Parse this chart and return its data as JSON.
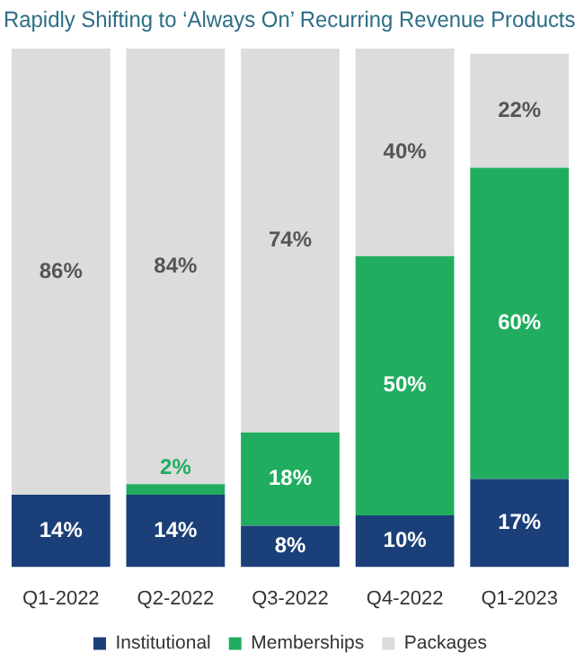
{
  "chart_data": {
    "type": "bar",
    "stacked": true,
    "title": "Rapidly Shifting to ‘Always On’ Recurring Revenue Products",
    "legend": "bottom",
    "categories": [
      "Q1-2022",
      "Q2-2022",
      "Q3-2022",
      "Q4-2022",
      "Q1-2023"
    ],
    "series": [
      {
        "name": "Institutional",
        "color": "#1b3f78",
        "values": [
          14,
          14,
          8,
          10,
          17
        ],
        "value_labels": [
          "14%",
          "14%",
          "8%",
          "10%",
          "17%"
        ]
      },
      {
        "name": "Memberships",
        "color": "#20ad5f",
        "values": [
          null,
          2,
          18,
          50,
          60
        ],
        "value_labels": [
          null,
          "2%",
          "18%",
          "50%",
          "60%"
        ]
      },
      {
        "name": "Packages",
        "color": "#dcdcdc",
        "values": [
          86,
          84,
          74,
          40,
          22
        ],
        "value_labels": [
          "86%",
          "84%",
          "74%",
          "40%",
          "22%"
        ]
      }
    ]
  }
}
